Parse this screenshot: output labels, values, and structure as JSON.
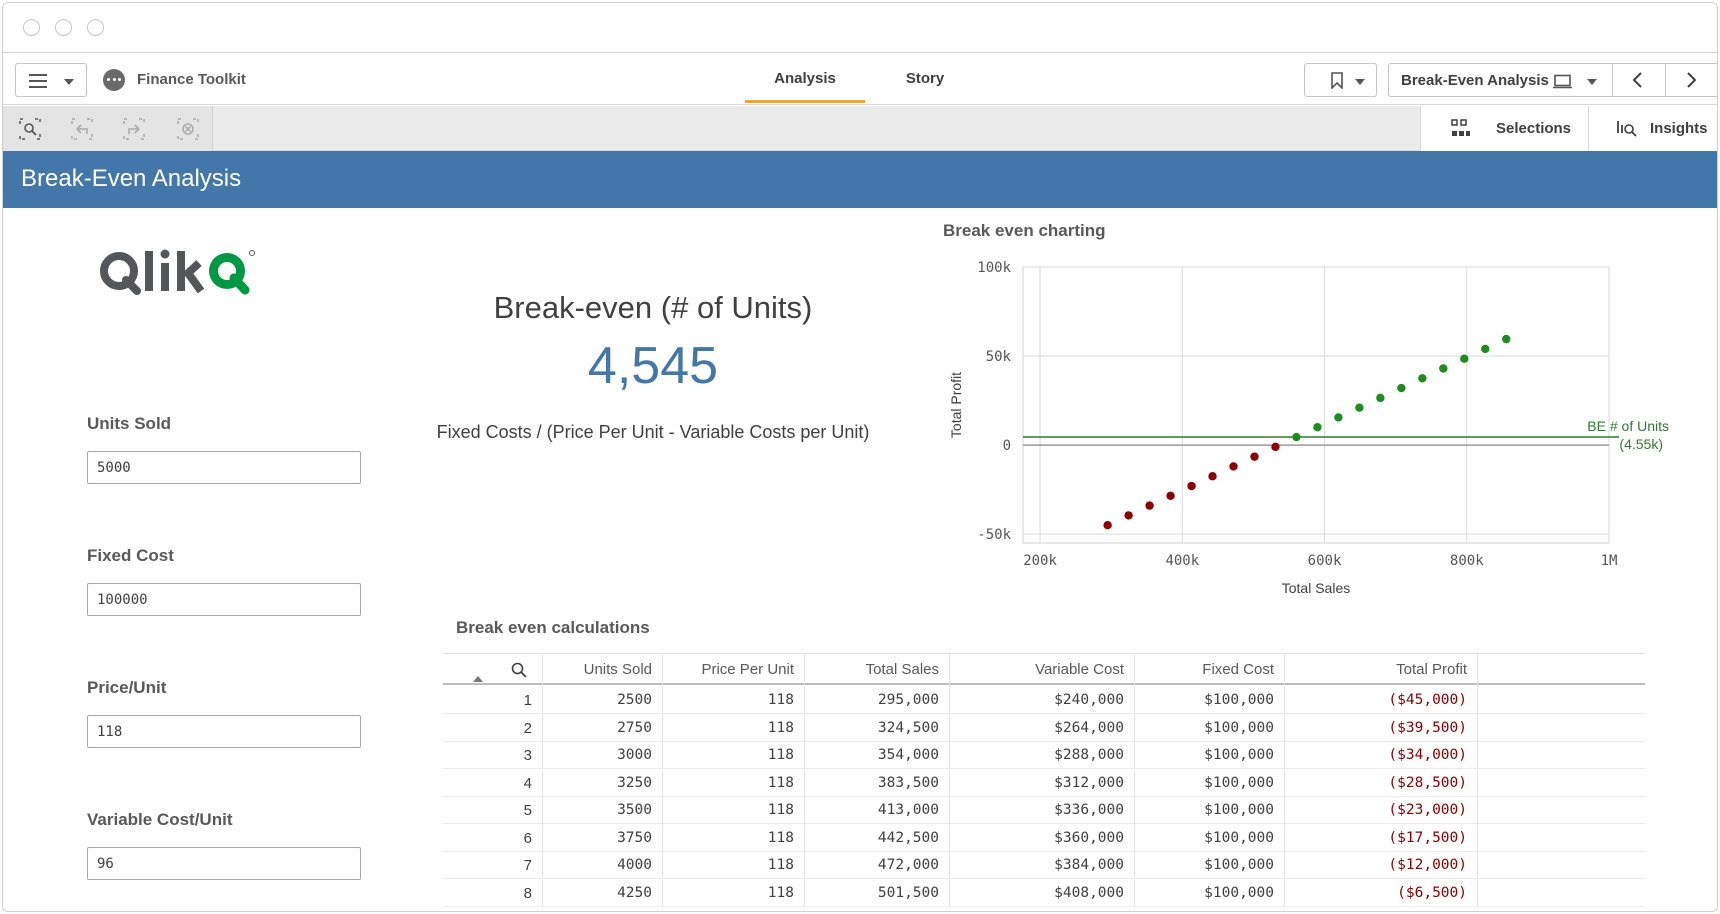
{
  "app": {
    "name": "Finance Toolkit"
  },
  "tabs": [
    {
      "label": "Analysis",
      "active": true
    },
    {
      "label": "Story",
      "active": false
    }
  ],
  "sheet_selector": {
    "label": "Break-Even Analysis"
  },
  "toolbar": {
    "selections_label": "Selections",
    "insights_label": "Insights"
  },
  "sheet": {
    "title": "Break-Even Analysis"
  },
  "inputs": [
    {
      "label": "Units Sold",
      "value": "5000"
    },
    {
      "label": "Fixed Cost",
      "value": "100000"
    },
    {
      "label": "Price/Unit",
      "value": "118"
    },
    {
      "label": "Variable Cost/Unit",
      "value": "96"
    }
  ],
  "kpi": {
    "title": "Break-even (# of Units)",
    "value": "4,545",
    "formula": "Fixed Costs / (Price Per Unit - Variable Costs per Unit)"
  },
  "colors": {
    "accent": "#4377a9",
    "tab_underline": "#f5a623",
    "loss": "#8b0000",
    "profit": "#1e8c1e"
  },
  "chart_data": {
    "type": "scatter",
    "title": "Break even charting",
    "xlabel": "Total Sales",
    "ylabel": "Total Profit",
    "xlim": [
      176000,
      1000000
    ],
    "ylim": [
      -55000,
      100000
    ],
    "x_ticks": [
      {
        "v": 200000,
        "label": "200k"
      },
      {
        "v": 400000,
        "label": "400k"
      },
      {
        "v": 600000,
        "label": "600k"
      },
      {
        "v": 800000,
        "label": "800k"
      },
      {
        "v": 1000000,
        "label": "1M"
      }
    ],
    "y_ticks": [
      {
        "v": 100000,
        "label": "100k"
      },
      {
        "v": 50000,
        "label": "50k"
      },
      {
        "v": 0,
        "label": "0"
      },
      {
        "v": -50000,
        "label": "-50k"
      }
    ],
    "grid": true,
    "reference_line": {
      "y": 4545,
      "label_line1": "BE # of Units",
      "label_line2": "(4.55k)"
    },
    "points": [
      {
        "x": 295000,
        "y": -45000
      },
      {
        "x": 324500,
        "y": -39500
      },
      {
        "x": 354000,
        "y": -34000
      },
      {
        "x": 383500,
        "y": -28500
      },
      {
        "x": 413000,
        "y": -23000
      },
      {
        "x": 442500,
        "y": -17500
      },
      {
        "x": 472000,
        "y": -12000
      },
      {
        "x": 501500,
        "y": -6500
      },
      {
        "x": 531000,
        "y": -1000
      },
      {
        "x": 560500,
        "y": 4500
      },
      {
        "x": 590000,
        "y": 10000
      },
      {
        "x": 619500,
        "y": 15500
      },
      {
        "x": 649000,
        "y": 21000
      },
      {
        "x": 678500,
        "y": 26500
      },
      {
        "x": 708000,
        "y": 32000
      },
      {
        "x": 737500,
        "y": 37500
      },
      {
        "x": 767000,
        "y": 43000
      },
      {
        "x": 796500,
        "y": 48500
      },
      {
        "x": 826000,
        "y": 54000
      },
      {
        "x": 855500,
        "y": 59500
      }
    ]
  },
  "table": {
    "title": "Break even calculations",
    "columns": [
      "",
      "Units Sold",
      "Price Per Unit",
      "Total Sales",
      "Variable Cost",
      "Fixed Cost",
      "Total Profit"
    ],
    "rows": [
      [
        "1",
        "2500",
        "118",
        "295,000",
        "$240,000",
        "$100,000",
        "($45,000)"
      ],
      [
        "2",
        "2750",
        "118",
        "324,500",
        "$264,000",
        "$100,000",
        "($39,500)"
      ],
      [
        "3",
        "3000",
        "118",
        "354,000",
        "$288,000",
        "$100,000",
        "($34,000)"
      ],
      [
        "4",
        "3250",
        "118",
        "383,500",
        "$312,000",
        "$100,000",
        "($28,500)"
      ],
      [
        "5",
        "3500",
        "118",
        "413,000",
        "$336,000",
        "$100,000",
        "($23,000)"
      ],
      [
        "6",
        "3750",
        "118",
        "442,500",
        "$360,000",
        "$100,000",
        "($17,500)"
      ],
      [
        "7",
        "4000",
        "118",
        "472,000",
        "$384,000",
        "$100,000",
        "($12,000)"
      ],
      [
        "8",
        "4250",
        "118",
        "501,500",
        "$408,000",
        "$100,000",
        "($6,500)"
      ]
    ]
  }
}
